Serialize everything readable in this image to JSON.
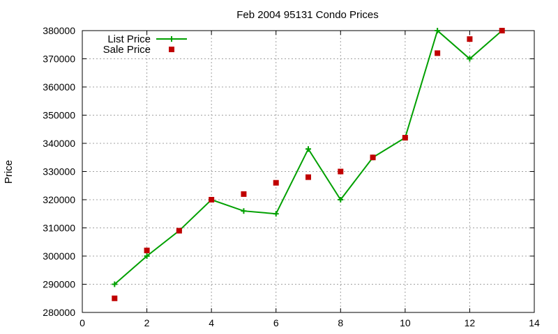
{
  "chart_data": {
    "type": "line",
    "title": "Feb 2004 95131 Condo Prices",
    "xlabel": "",
    "ylabel": "Price",
    "xlim": [
      0,
      14
    ],
    "ylim": [
      280000,
      380000
    ],
    "xticks": [
      0,
      2,
      4,
      6,
      8,
      10,
      12,
      14
    ],
    "yticks": [
      280000,
      290000,
      300000,
      310000,
      320000,
      330000,
      340000,
      350000,
      360000,
      370000,
      380000
    ],
    "grid": true,
    "legend_position": "top-left",
    "series": [
      {
        "name": "List Price",
        "style": "line-with-plus-markers",
        "color": "#00a000",
        "x": [
          1,
          2,
          3,
          4,
          5,
          6,
          7,
          8,
          9,
          10,
          11,
          12,
          13
        ],
        "y": [
          290000,
          300000,
          309000,
          320000,
          316000,
          315000,
          338000,
          320000,
          335000,
          342000,
          380000,
          370000,
          380000
        ]
      },
      {
        "name": "Sale Price",
        "style": "square-markers",
        "color": "#c00000",
        "x": [
          1,
          2,
          3,
          4,
          5,
          6,
          7,
          8,
          9,
          10,
          11,
          12,
          13
        ],
        "y": [
          285000,
          302000,
          309000,
          320000,
          322000,
          326000,
          328000,
          330000,
          335000,
          342000,
          372000,
          377000,
          380000
        ]
      }
    ]
  }
}
